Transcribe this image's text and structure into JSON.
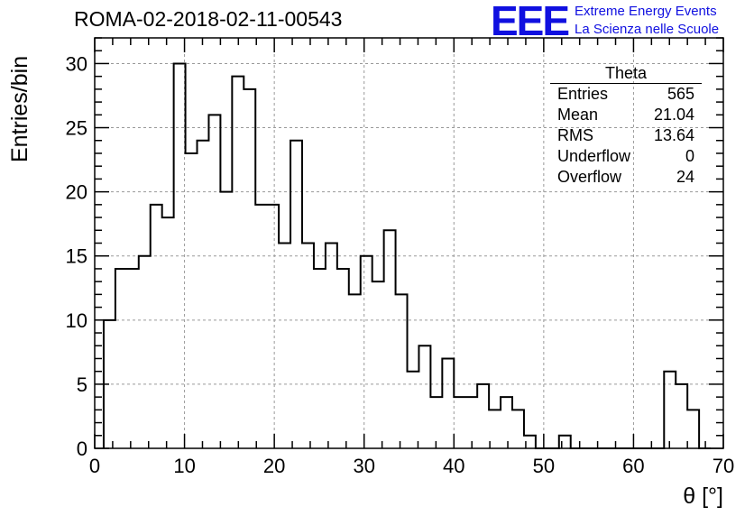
{
  "title": "ROMA-02-2018-02-11-00543",
  "logo": {
    "mark": "EEE",
    "line1": "Extreme Energy Events",
    "line2": "La Scienza nelle Scuole",
    "color": "#1010e0"
  },
  "stats_box": {
    "title": "Theta",
    "rows": [
      {
        "label": "Entries",
        "value": "565"
      },
      {
        "label": "Mean",
        "value": "21.04"
      },
      {
        "label": "RMS",
        "value": "13.64"
      },
      {
        "label": "Underflow",
        "value": "0"
      },
      {
        "label": "Overflow",
        "value": "24"
      }
    ]
  },
  "chart_data": {
    "type": "bar",
    "style": "step-histogram",
    "xlabel": "θ [°]",
    "ylabel": "Entries/bin",
    "xlim": [
      0,
      70
    ],
    "ylim": [
      0,
      32
    ],
    "grid": true,
    "x_ticks": [
      0,
      10,
      20,
      30,
      40,
      50,
      60,
      70
    ],
    "y_ticks": [
      0,
      5,
      10,
      15,
      20,
      25,
      30
    ],
    "bin_width": 1.3,
    "bin_start": 1.0,
    "values": [
      10,
      14,
      14,
      15,
      19,
      18,
      30,
      23,
      24,
      26,
      20,
      29,
      28,
      19,
      19,
      16,
      24,
      16,
      14,
      16,
      14,
      12,
      15,
      13,
      17,
      12,
      6,
      8,
      4,
      7,
      4,
      4,
      5,
      3,
      4,
      3,
      1,
      0,
      0,
      1,
      0,
      0,
      0,
      0,
      0,
      0,
      0,
      0,
      6,
      5,
      3,
      0
    ]
  }
}
